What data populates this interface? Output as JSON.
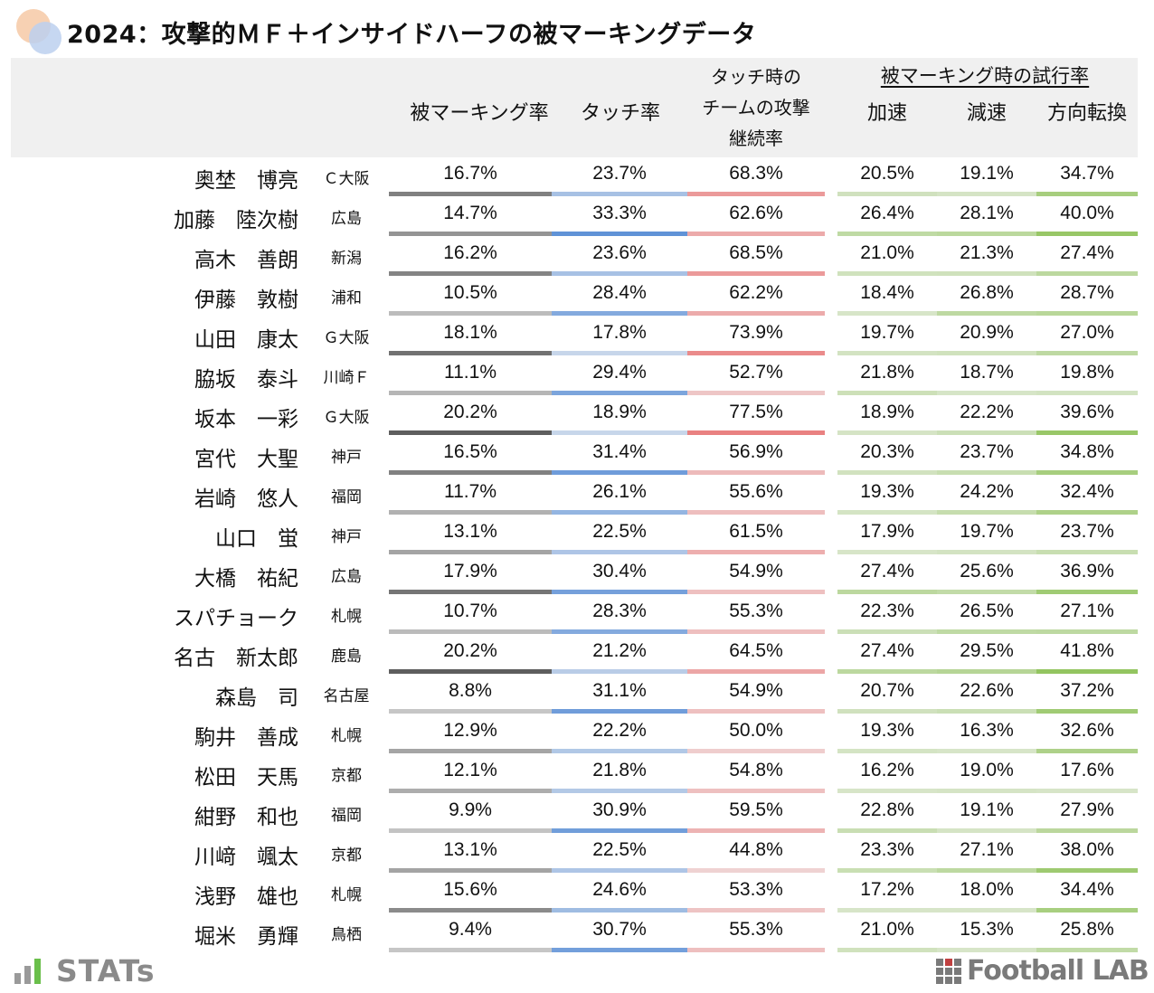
{
  "title": "2024：攻撃的ＭＦ＋インサイドハーフの被マーキングデータ",
  "headers": {
    "marking_rate": "被マーキング率",
    "touch_rate": "タッチ率",
    "team_attack": [
      "タッチ時の",
      "チームの攻撃",
      "継続率"
    ],
    "group": "被マーキング時の試行率",
    "accel": "加速",
    "decel": "減速",
    "direction": "方向転換"
  },
  "colors": {
    "marking": "#555555",
    "touch": "#5b8fd6",
    "attack": "#e98080",
    "try": "#92c45e"
  },
  "rows": [
    {
      "name": "奥埜　博亮",
      "team": "Ｃ大阪",
      "marking": "16.7%",
      "touch": "23.7%",
      "attack": "68.3%",
      "accel": "20.5%",
      "decel": "19.1%",
      "direction": "34.7%"
    },
    {
      "name": "加藤　陸次樹",
      "team": "広島",
      "marking": "14.7%",
      "touch": "33.3%",
      "attack": "62.6%",
      "accel": "26.4%",
      "decel": "28.1%",
      "direction": "40.0%"
    },
    {
      "name": "高木　善朗",
      "team": "新潟",
      "marking": "16.2%",
      "touch": "23.6%",
      "attack": "68.5%",
      "accel": "21.0%",
      "decel": "21.3%",
      "direction": "27.4%"
    },
    {
      "name": "伊藤　敦樹",
      "team": "浦和",
      "marking": "10.5%",
      "touch": "28.4%",
      "attack": "62.2%",
      "accel": "18.4%",
      "decel": "26.8%",
      "direction": "28.7%"
    },
    {
      "name": "山田　康太",
      "team": "Ｇ大阪",
      "marking": "18.1%",
      "touch": "17.8%",
      "attack": "73.9%",
      "accel": "19.7%",
      "decel": "20.9%",
      "direction": "27.0%"
    },
    {
      "name": "脇坂　泰斗",
      "team": "川崎Ｆ",
      "marking": "11.1%",
      "touch": "29.4%",
      "attack": "52.7%",
      "accel": "21.8%",
      "decel": "18.7%",
      "direction": "19.8%"
    },
    {
      "name": "坂本　一彩",
      "team": "Ｇ大阪",
      "marking": "20.2%",
      "touch": "18.9%",
      "attack": "77.5%",
      "accel": "18.9%",
      "decel": "22.2%",
      "direction": "39.6%"
    },
    {
      "name": "宮代　大聖",
      "team": "神戸",
      "marking": "16.5%",
      "touch": "31.4%",
      "attack": "56.9%",
      "accel": "20.3%",
      "decel": "23.7%",
      "direction": "34.8%"
    },
    {
      "name": "岩崎　悠人",
      "team": "福岡",
      "marking": "11.7%",
      "touch": "26.1%",
      "attack": "55.6%",
      "accel": "19.3%",
      "decel": "24.2%",
      "direction": "32.4%"
    },
    {
      "name": "山口　蛍",
      "team": "神戸",
      "marking": "13.1%",
      "touch": "22.5%",
      "attack": "61.5%",
      "accel": "17.9%",
      "decel": "19.7%",
      "direction": "23.7%"
    },
    {
      "name": "大橋　祐紀",
      "team": "広島",
      "marking": "17.9%",
      "touch": "30.4%",
      "attack": "54.9%",
      "accel": "27.4%",
      "decel": "25.6%",
      "direction": "36.9%"
    },
    {
      "name": "スパチョーク",
      "team": "札幌",
      "marking": "10.7%",
      "touch": "28.3%",
      "attack": "55.3%",
      "accel": "22.3%",
      "decel": "26.5%",
      "direction": "27.1%"
    },
    {
      "name": "名古　新太郎",
      "team": "鹿島",
      "marking": "20.2%",
      "touch": "21.2%",
      "attack": "64.5%",
      "accel": "27.4%",
      "decel": "29.5%",
      "direction": "41.8%"
    },
    {
      "name": "森島　司",
      "team": "名古屋",
      "marking": "8.8%",
      "touch": "31.1%",
      "attack": "54.9%",
      "accel": "20.7%",
      "decel": "22.6%",
      "direction": "37.2%"
    },
    {
      "name": "駒井　善成",
      "team": "札幌",
      "marking": "12.9%",
      "touch": "22.2%",
      "attack": "50.0%",
      "accel": "19.3%",
      "decel": "16.3%",
      "direction": "32.6%"
    },
    {
      "name": "松田　天馬",
      "team": "京都",
      "marking": "12.1%",
      "touch": "21.8%",
      "attack": "54.8%",
      "accel": "16.2%",
      "decel": "19.0%",
      "direction": "17.6%"
    },
    {
      "name": "紺野　和也",
      "team": "福岡",
      "marking": "9.9%",
      "touch": "30.9%",
      "attack": "59.5%",
      "accel": "22.8%",
      "decel": "19.1%",
      "direction": "27.9%"
    },
    {
      "name": "川﨑　颯太",
      "team": "京都",
      "marking": "13.1%",
      "touch": "22.5%",
      "attack": "44.8%",
      "accel": "23.3%",
      "decel": "27.1%",
      "direction": "38.0%"
    },
    {
      "name": "浅野　雄也",
      "team": "札幌",
      "marking": "15.6%",
      "touch": "24.6%",
      "attack": "53.3%",
      "accel": "17.2%",
      "decel": "18.0%",
      "direction": "34.4%"
    },
    {
      "name": "堀米　勇輝",
      "team": "鳥栖",
      "marking": "9.4%",
      "touch": "30.7%",
      "attack": "55.3%",
      "accel": "21.0%",
      "decel": "15.3%",
      "direction": "25.8%"
    }
  ],
  "footer": {
    "left_logo": "STATs",
    "right_logo": "Football LAB"
  }
}
